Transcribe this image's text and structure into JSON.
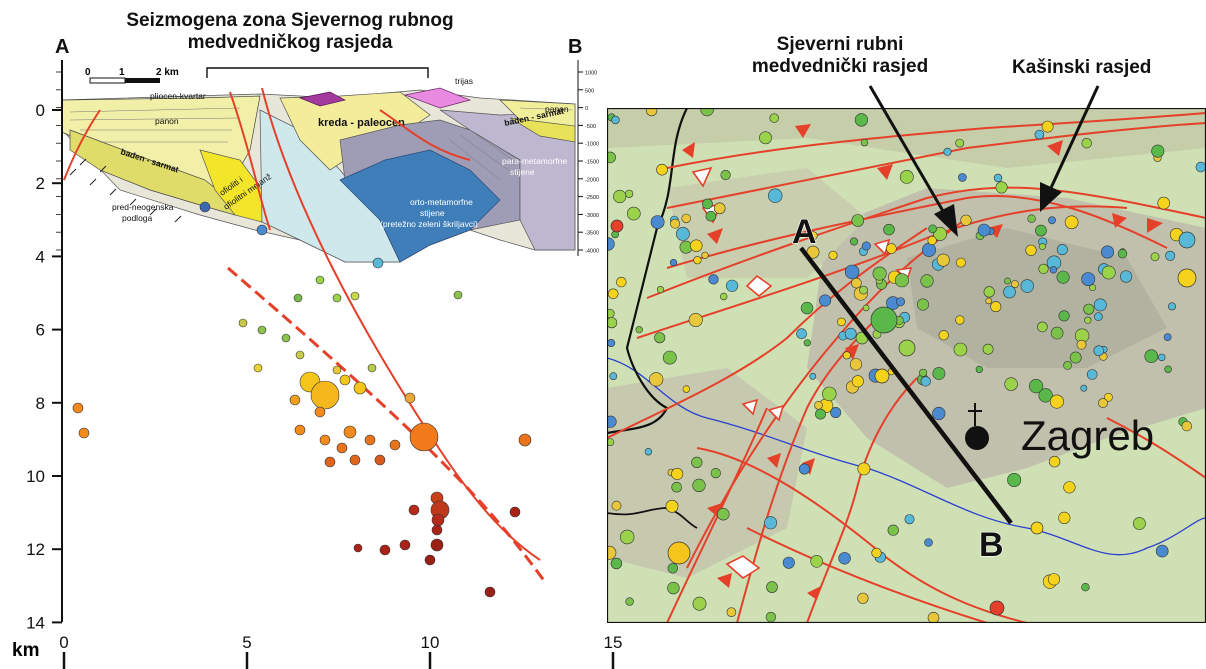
{
  "section": {
    "title_line1": "Seizmogena zona Sjevernog rubnog",
    "title_line2": "medvedničkog rasjeda",
    "end_left": "A",
    "end_right": "B",
    "depth_ticks": [
      "0",
      "2",
      "4",
      "6",
      "8",
      "10",
      "12",
      "14"
    ],
    "distance_ticks": [
      "0",
      "5",
      "10",
      "15"
    ],
    "axis_unit": "km",
    "scalebar_labels": [
      "0",
      "1",
      "2 km"
    ],
    "small_depth_ticks": [
      "1000",
      "500",
      "0",
      "-500",
      "-1000",
      "-1500",
      "-2000",
      "-2500",
      "-3000",
      "-3500",
      "-4000"
    ],
    "geology_labels": {
      "pliocen": "pliocen-kvartar",
      "panon": "panon",
      "panon_right": "panon",
      "baden_left": "baden - sarmat",
      "baden_right": "baden - sarmat",
      "kreda": "kreda - paleocen",
      "trijas": "trijas",
      "ofioliti1": "ofioliti i",
      "ofioliti2": "ofiolitni melanž",
      "pred1": "pred-neogenska",
      "pred2": "podloga",
      "para1": "para-metamorfne",
      "para2": "stijene",
      "orto1": "orto-metamorfne",
      "orto2": "stijene",
      "orto3": "(pretežno zeleni škriljavci)"
    }
  },
  "map": {
    "fault_label_1_line1": "Sjeverni rubni",
    "fault_label_1_line2": "medvednički rasjed",
    "fault_label_2": "Kašinski rasjed",
    "city": "Zagreb",
    "profile_start": "A",
    "profile_end": "B"
  },
  "colors": {
    "fault": "#e5402a",
    "river": "#2a3fd0",
    "border": "#111111",
    "map_bg": "#cfe0b4",
    "relief": "#b9b3a8",
    "quake_shallow": "#f5c51c",
    "quake_mid": "#f28a1c",
    "quake_deep": "#b22a1a"
  }
}
